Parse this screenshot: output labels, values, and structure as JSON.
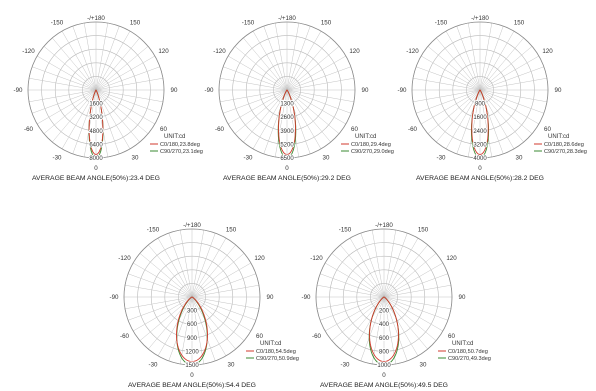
{
  "chart_data": [
    {
      "type": "polar",
      "unit_label": "UNIT:cd",
      "angle_labels": [
        "-/+180",
        "-150",
        "150",
        "-120",
        "120",
        "-90",
        "90",
        "-60",
        "60",
        "-30",
        "30",
        "0"
      ],
      "radial_max": 8000,
      "radial_ticks": [
        "1600",
        "3200",
        "4800",
        "6400",
        "8000"
      ],
      "series": [
        {
          "name": "C0/180,23.8deg",
          "beam_angle_deg": 23.8,
          "color": "#d23a2e"
        },
        {
          "name": "C90/270,23.1deg",
          "beam_angle_deg": 23.1,
          "color": "#3a8a30"
        }
      ],
      "caption": "AVERAGE BEAM ANGLE(50%):23.4 DEG"
    },
    {
      "type": "polar",
      "unit_label": "UNIT:cd",
      "angle_labels": [
        "-/+180",
        "-150",
        "150",
        "-120",
        "120",
        "-90",
        "90",
        "-60",
        "60",
        "-30",
        "30",
        "0"
      ],
      "radial_max": 6500,
      "radial_ticks": [
        "1300",
        "2600",
        "3900",
        "5200",
        "6500"
      ],
      "series": [
        {
          "name": "C0/180,29.4deg",
          "beam_angle_deg": 29.4,
          "color": "#d23a2e"
        },
        {
          "name": "C90/270,29.0deg",
          "beam_angle_deg": 29.0,
          "color": "#3a8a30"
        }
      ],
      "caption": "AVERAGE BEAM ANGLE(50%):29.2 DEG"
    },
    {
      "type": "polar",
      "unit_label": "UNIT:cd",
      "angle_labels": [
        "-/+180",
        "-150",
        "150",
        "-120",
        "120",
        "-90",
        "90",
        "-60",
        "60",
        "-30",
        "30",
        "0"
      ],
      "radial_max": 4000,
      "radial_ticks": [
        "800",
        "1600",
        "2400",
        "3200",
        "4000"
      ],
      "series": [
        {
          "name": "C0/180,28.6deg",
          "beam_angle_deg": 28.6,
          "color": "#d23a2e"
        },
        {
          "name": "C90/270,28.3deg",
          "beam_angle_deg": 28.3,
          "color": "#3a8a30"
        }
      ],
      "caption": "AVERAGE BEAM ANGLE(50%):28.2 DEG"
    },
    {
      "type": "polar",
      "unit_label": "UNIT:cd",
      "angle_labels": [
        "-/+180",
        "-150",
        "150",
        "-120",
        "120",
        "-90",
        "90",
        "-60",
        "60",
        "-30",
        "30",
        "0"
      ],
      "radial_max": 1500,
      "radial_ticks": [
        "300",
        "600",
        "900",
        "1200",
        "1500"
      ],
      "series": [
        {
          "name": "C0/180,54.5deg",
          "beam_angle_deg": 54.5,
          "color": "#d23a2e"
        },
        {
          "name": "C90/270,50.9deg",
          "beam_angle_deg": 50.9,
          "color": "#3a8a30"
        }
      ],
      "caption": "AVERAGE BEAM ANGLE(50%):54.4 DEG"
    },
    {
      "type": "polar",
      "unit_label": "UNIT:cd",
      "angle_labels": [
        "-/+180",
        "-150",
        "150",
        "-120",
        "120",
        "-90",
        "90",
        "-60",
        "60",
        "-30",
        "30",
        "0"
      ],
      "radial_max": 1000,
      "radial_ticks": [
        "200",
        "400",
        "600",
        "800",
        "1000"
      ],
      "series": [
        {
          "name": "C0/180,50.7deg",
          "beam_angle_deg": 50.7,
          "color": "#d23a2e"
        },
        {
          "name": "C90/270,49.3deg",
          "beam_angle_deg": 49.3,
          "color": "#3a8a30"
        }
      ],
      "caption": "AVERAGE BEAM ANGLE(50%):49.5 DEG"
    }
  ]
}
